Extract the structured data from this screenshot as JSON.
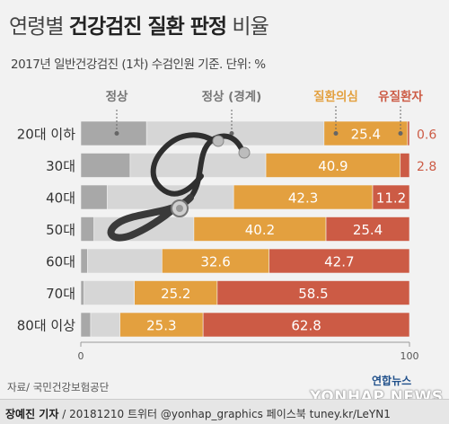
{
  "title": {
    "part1": "연령별 ",
    "part2": "건강검진 질환 판정",
    "part3": " 비율"
  },
  "subtitle": "2017년 일반건강검진 (1차) 수검인원 기준. 단위: %",
  "source": "자료/ 국민건강보험공단",
  "footer": {
    "author": "장예진 기자",
    "rest": "/ 20181210 트위터 @yonhap_graphics  페이스북 tuney.kr/LeYN1"
  },
  "logo": {
    "korean": "연합뉴스",
    "english": "YONHAP NEWS"
  },
  "colors": {
    "normal": "#a8a8a8",
    "borderline": "#d6d6d6",
    "suspected": "#e3a03f",
    "disease": "#cc5b45",
    "background": "#f2f2f2"
  },
  "chart_data": {
    "type": "bar",
    "orientation": "horizontal",
    "stacked": true,
    "categories": [
      "20대 이하",
      "30대",
      "40대",
      "50대",
      "60대",
      "70대",
      "80대 이상"
    ],
    "series": [
      {
        "name": "정상",
        "values": [
          20.0,
          15.0,
          8.0,
          4.0,
          2.0,
          1.0,
          3.0
        ]
      },
      {
        "name": "정상 (경계)",
        "values": [
          54.0,
          41.3,
          38.5,
          30.4,
          22.7,
          15.3,
          8.9
        ]
      },
      {
        "name": "질환의심",
        "values": [
          25.4,
          40.9,
          42.3,
          40.2,
          32.6,
          25.2,
          25.3
        ]
      },
      {
        "name": "유질환자",
        "values": [
          0.6,
          2.8,
          11.2,
          25.4,
          42.7,
          58.5,
          62.8
        ]
      }
    ],
    "labels": {
      "질환의심": [
        "25.4",
        "40.9",
        "42.3",
        "40.2",
        "32.6",
        "25.2",
        "25.3"
      ],
      "유질환자": [
        "0.6",
        "2.8",
        "11.2",
        "25.4",
        "42.7",
        "58.5",
        "62.8"
      ]
    },
    "xlim": [
      0,
      100
    ],
    "xticks": [
      "0",
      "100"
    ],
    "legend_placement": "top"
  }
}
